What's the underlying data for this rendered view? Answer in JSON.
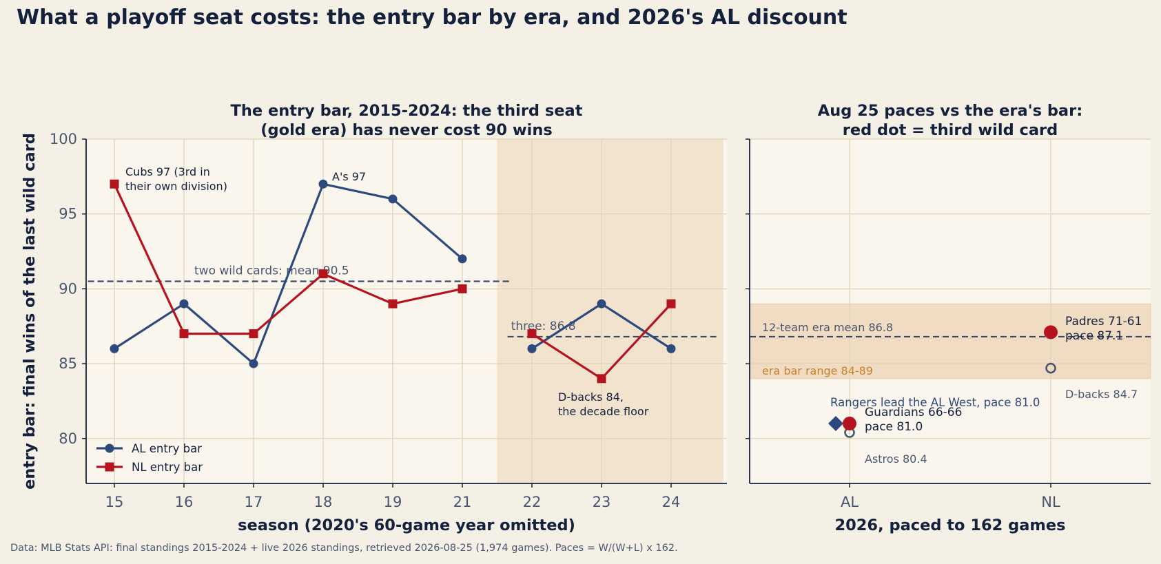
{
  "figure": {
    "title": "What a playoff seat costs: the entry bar by era, and 2026's AL discount",
    "footer": "Data: MLB Stats API: final standings 2015-2024 + live 2026 standings, retrieved 2026-08-25 (1,974 games). Paces = W/(W+L) x 162."
  },
  "colors": {
    "al": "#2e4a7d",
    "nl": "#b5141f",
    "mean_line": "#3d4a66",
    "shade": "#f2e3cf",
    "band": "#f0dcc3",
    "band_text": "#c8822e",
    "grid": "#e0d6b8",
    "axis": "#14213d",
    "tick_text": "#4a5670"
  },
  "chart_data": [
    {
      "type": "line",
      "title": [
        "The entry bar, 2015-2024: the third seat",
        "(gold era) has never cost 90 wins"
      ],
      "xlabel": "season (2020's 60-game year omitted)",
      "ylabel": "entry bar: final wins of the last wild card",
      "categories": [
        "15",
        "16",
        "17",
        "18",
        "19",
        "21",
        "22",
        "23",
        "24"
      ],
      "ylim": [
        77,
        100
      ],
      "yticks": [
        80,
        85,
        90,
        95,
        100
      ],
      "grid": true,
      "legend_position": "lower-left",
      "series": [
        {
          "name": "AL entry bar",
          "marker": "circle",
          "values": [
            86,
            89,
            85,
            97,
            96,
            92,
            86,
            89,
            86
          ]
        },
        {
          "name": "NL entry bar",
          "marker": "square",
          "values": [
            97,
            87,
            87,
            91,
            89,
            90,
            87,
            84,
            89
          ]
        }
      ],
      "shaded_region": {
        "from_category": "22",
        "to_category": "24"
      },
      "mean_lines": [
        {
          "label": "two wild cards: mean 90.5",
          "value": 90.5,
          "from": "15",
          "to": "21"
        },
        {
          "label": "three: 86.8",
          "value": 86.8,
          "from": "22",
          "to": "24"
        }
      ],
      "annotations": [
        {
          "text": [
            "Cubs 97 (3rd in",
            "their own division)"
          ],
          "x": "15",
          "y": 97
        },
        {
          "text": [
            "A's 97"
          ],
          "x": "18",
          "y": 97
        },
        {
          "text": [
            "D-backs 84,",
            "the decade floor"
          ],
          "x": "23",
          "y": 84
        }
      ]
    },
    {
      "type": "scatter",
      "title": [
        "Aug 25 paces vs the era's bar:",
        "red dot = third wild card"
      ],
      "xlabel": "2026, paced to 162 games",
      "categories": [
        "AL",
        "NL"
      ],
      "ylim": [
        77,
        100
      ],
      "yticks": [
        80,
        85,
        90,
        95,
        100
      ],
      "grid": true,
      "band": {
        "label": "era bar range 84-89",
        "from": 84,
        "to": 89
      },
      "mean_line": {
        "label": "12-team era mean 86.8",
        "value": 86.8
      },
      "points": [
        {
          "league": "AL",
          "value": 81.0,
          "kind": "diamond",
          "label": "Rangers lead the AL West, pace 81.0"
        },
        {
          "league": "AL",
          "value": 81.0,
          "kind": "red",
          "label": [
            "Guardians 66-66",
            "pace 81.0"
          ]
        },
        {
          "league": "AL",
          "value": 80.4,
          "kind": "open",
          "label": "Astros 80.4"
        },
        {
          "league": "NL",
          "value": 87.1,
          "kind": "red",
          "label": [
            "Padres 71-61",
            "pace 87.1"
          ]
        },
        {
          "league": "NL",
          "value": 84.7,
          "kind": "open",
          "label": "D-backs 84.7"
        }
      ]
    }
  ]
}
